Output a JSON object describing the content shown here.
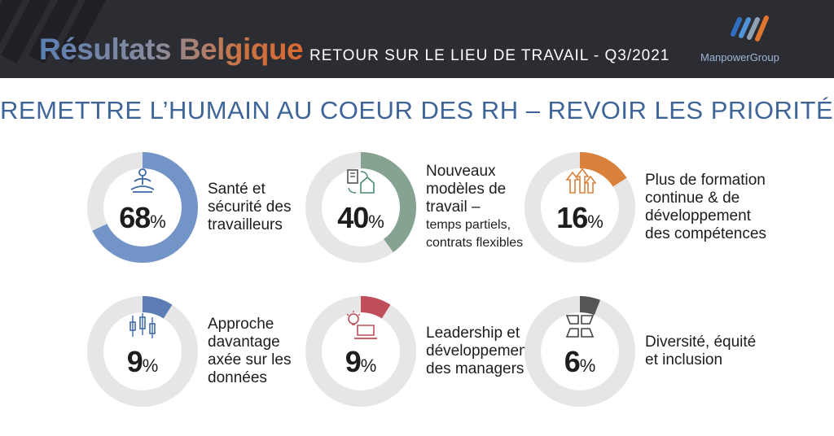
{
  "header": {
    "title": "Résultats Belgique",
    "subtitle": "RETOUR SUR LE LIEU DE TRAVAIL - Q3/2021",
    "logo_text": "ManpowerGroup"
  },
  "headline": "REMETTRE L’HUMAIN AU COEUR DES RH – REVOIR LES PRIORITÉS",
  "colors": {
    "track": "#e6e6e6",
    "text": "#1d1d1d",
    "headline": "#3f6598",
    "header_bg": "#2c2c33"
  },
  "chart_data": {
    "type": "pie",
    "unit": "%",
    "categories": [
      "Santé et sécurité des travailleurs",
      "Nouveaux modèles de travail – temps partiels, contrats flexibles",
      "Plus de formation continue & de développement des compétences",
      "Approche davantage axée sur les données",
      "Leadership et développement des managers",
      "Diversité, équité et inclusion"
    ],
    "values": [
      68,
      40,
      16,
      9,
      9,
      6
    ],
    "items": [
      {
        "value": 68,
        "label_lines": [
          "Santé et",
          "sécurité des",
          "travailleurs"
        ],
        "small_lines": [],
        "color": "#7394c7",
        "icon": "meditation-icon"
      },
      {
        "value": 40,
        "label_lines": [
          "Nouveaux",
          "modèles de",
          "travail –"
        ],
        "small_lines": [
          "temps partiels,",
          "contrats flexibles"
        ],
        "color": "#86a392",
        "icon": "office-home-icon"
      },
      {
        "value": 16,
        "label_lines": [
          "Plus de formation",
          "continue & de",
          "développement",
          "des compétences"
        ],
        "small_lines": [],
        "color": "#d9813a",
        "icon": "growth-arrows-icon"
      },
      {
        "value": 9,
        "label_lines": [
          "Approche",
          "davantage",
          "axée sur les",
          "données"
        ],
        "small_lines": [],
        "color": "#5b7cb4",
        "icon": "candlestick-chart-icon"
      },
      {
        "value": 9,
        "label_lines": [
          "Leadership et",
          "développement",
          "des managers"
        ],
        "small_lines": [],
        "color": "#c04d5a",
        "icon": "idea-laptop-icon"
      },
      {
        "value": 6,
        "label_lines": [
          "Diversité, équité",
          "et inclusion"
        ],
        "small_lines": [],
        "color": "#555555",
        "icon": "joined-hands-icon"
      }
    ]
  }
}
